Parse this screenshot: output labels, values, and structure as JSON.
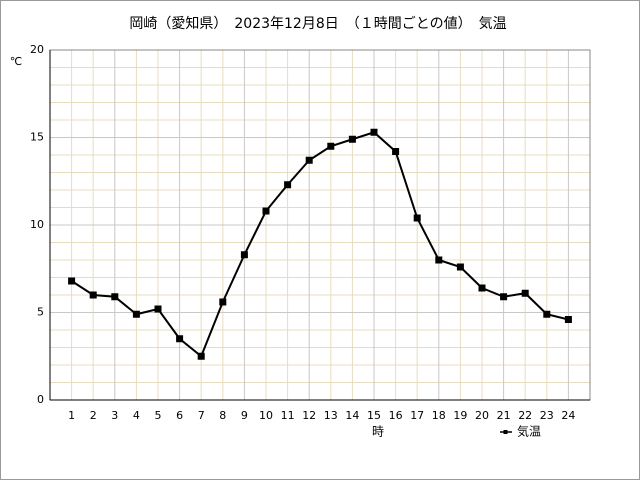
{
  "chart_data": {
    "type": "line",
    "title": "岡崎（愛知県）　2023年12月8日　（１時間ごとの値）　気温",
    "y_unit": "℃",
    "x_label": "時",
    "x": [
      1,
      2,
      3,
      4,
      5,
      6,
      7,
      8,
      9,
      10,
      11,
      12,
      13,
      14,
      15,
      16,
      17,
      18,
      19,
      20,
      21,
      22,
      23,
      24
    ],
    "series": [
      {
        "name": "気温",
        "color": "#000000",
        "values": [
          6.8,
          6.0,
          5.9,
          4.9,
          5.2,
          3.5,
          2.5,
          5.6,
          8.3,
          10.8,
          12.3,
          13.7,
          14.5,
          14.9,
          15.3,
          14.2,
          10.4,
          8.0,
          7.6,
          6.4,
          5.9,
          6.1,
          4.9,
          4.6
        ]
      }
    ],
    "xlim": [
      0,
      25
    ],
    "xticks": [
      1,
      2,
      3,
      4,
      5,
      6,
      7,
      8,
      9,
      10,
      11,
      12,
      13,
      14,
      15,
      16,
      17,
      18,
      19,
      20,
      21,
      22,
      23,
      24
    ],
    "ylim": [
      0,
      20
    ],
    "yticks": [
      0,
      5,
      10,
      15,
      20
    ],
    "y_minor_ticks": [
      1,
      2,
      3,
      4,
      6,
      7,
      8,
      9,
      11,
      12,
      13,
      14,
      16,
      17,
      18,
      19
    ],
    "grid": true,
    "legend": "bottom-right"
  }
}
